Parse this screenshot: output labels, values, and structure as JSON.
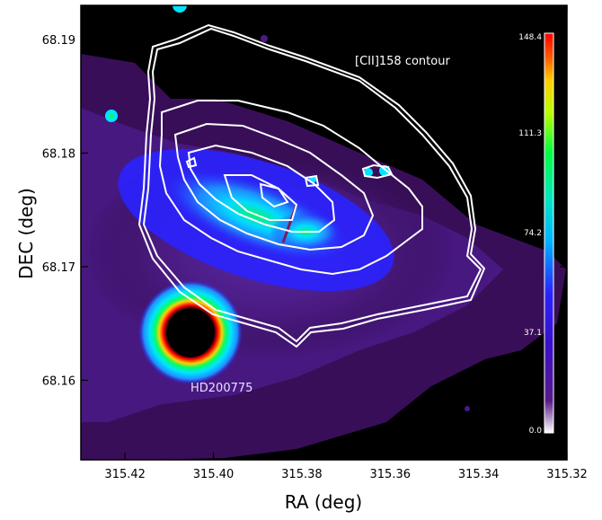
{
  "chart_data": {
    "type": "heatmap",
    "title": "",
    "xlabel": "RA (deg)",
    "ylabel": "DEC (deg)",
    "xlim": [
      315.43,
      315.32
    ],
    "ylim": [
      68.153,
      68.193
    ],
    "x_ticks": [
      315.42,
      315.4,
      315.38,
      315.36,
      315.34,
      315.32
    ],
    "x_tick_labels": [
      "315.42",
      "315.40",
      "315.38",
      "315.36",
      "315.34",
      "315.32"
    ],
    "y_ticks": [
      68.16,
      68.17,
      68.18,
      68.19
    ],
    "y_tick_labels": [
      "68.16",
      "68.17",
      "68.18",
      "68.19"
    ],
    "colorbar": {
      "min": 0.0,
      "max": 148.4,
      "ticks": [
        0.0,
        37.1,
        74.2,
        111.3,
        148.4
      ],
      "tick_labels": [
        "0.0",
        "37.1",
        "74.2",
        "111.3",
        "148.4"
      ]
    },
    "annotations": {
      "contour_label": "[CII]158 contour",
      "star_label": "HD200775"
    },
    "colors": {
      "background": "#000000",
      "contour": "#ffffff",
      "colormap": [
        "#000000",
        "#3a0a5a",
        "#4b1aa0",
        "#2a22ff",
        "#1e90ff",
        "#00e5ff",
        "#00ff66",
        "#b8ff00",
        "#ffd000",
        "#ff5a00",
        "#ff0000"
      ]
    }
  }
}
